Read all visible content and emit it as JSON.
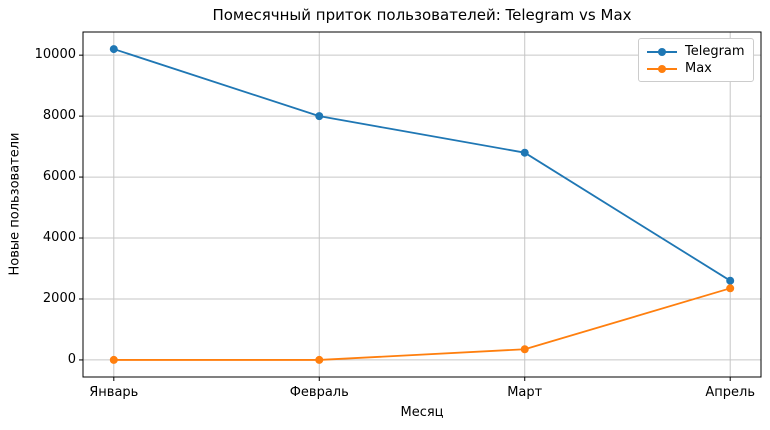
{
  "chart_data": {
    "type": "line",
    "title": "Помесячный приток пользователей: Telegram vs Max",
    "xlabel": "Месяц",
    "ylabel": "Новые пользователи",
    "categories": [
      "Январь",
      "Февраль",
      "Март",
      "Апрель"
    ],
    "series": [
      {
        "name": "Telegram",
        "color": "#1f77b4",
        "marker": "o",
        "values": [
          10200,
          8000,
          6800,
          2600
        ]
      },
      {
        "name": "Max",
        "color": "#ff7f0e",
        "marker": "o",
        "values": [
          0,
          0,
          350,
          2350
        ]
      }
    ],
    "yticks": [
      0,
      2000,
      4000,
      6000,
      8000,
      10000
    ],
    "ylim": [
      -560,
      10760
    ],
    "grid": true,
    "grid_color": "#c6c6c6",
    "spine_color": "#000000",
    "background": "#ffffff",
    "legend_position": "upper right"
  }
}
